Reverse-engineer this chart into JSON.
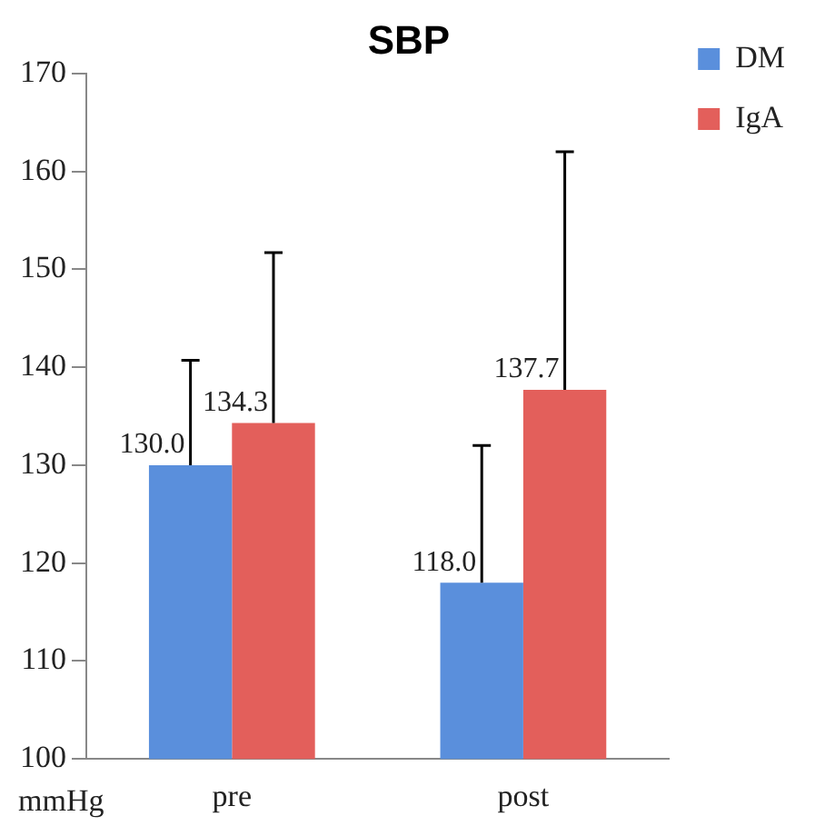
{
  "chart_data": {
    "type": "bar",
    "title": "SBP",
    "ylabel": "mmHg",
    "categories": [
      "pre",
      "post"
    ],
    "series": [
      {
        "name": "DM",
        "color": "#5a8fdc",
        "values": [
          130.0,
          118.0
        ],
        "errors": [
          [
            130.0,
            140.7
          ],
          [
            118.0,
            132.0
          ]
        ],
        "value_labels": [
          "130.0",
          "118.0"
        ]
      },
      {
        "name": "IgA",
        "color": "#e35f5b",
        "values": [
          134.3,
          137.7
        ],
        "errors": [
          [
            134.3,
            151.7
          ],
          [
            137.7,
            162.0
          ]
        ],
        "value_labels": [
          "134.3",
          "137.7"
        ]
      }
    ],
    "ylim": [
      100,
      170
    ],
    "yticks": [
      100,
      110,
      120,
      130,
      140,
      150,
      160,
      170
    ],
    "grid": false,
    "legend": "right"
  }
}
